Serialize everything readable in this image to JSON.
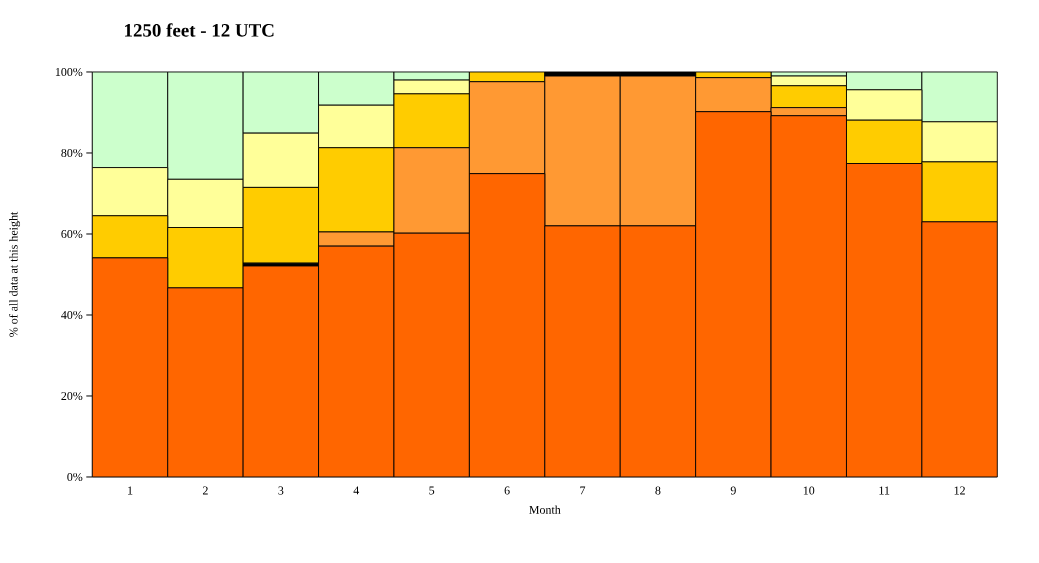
{
  "chart_data": {
    "type": "bar",
    "title": "1250 feet - 12 UTC",
    "xlabel": "Month",
    "ylabel": "% of all data at this height",
    "categories": [
      "1",
      "2",
      "3",
      "4",
      "5",
      "6",
      "7",
      "8",
      "9",
      "10",
      "11",
      "12"
    ],
    "stacked": true,
    "ylim": [
      0,
      100
    ],
    "yticks": [
      {
        "value": 0,
        "label": "0%"
      },
      {
        "value": 20,
        "label": "20%"
      },
      {
        "value": 40,
        "label": "40%"
      },
      {
        "value": 60,
        "label": "60%"
      },
      {
        "value": 80,
        "label": "80%"
      },
      {
        "value": 100,
        "label": "100%"
      }
    ],
    "series": [
      {
        "color": "#ff6600",
        "values": [
          54.1,
          46.7,
          52.1,
          57.0,
          60.2,
          74.9,
          62.0,
          62.0,
          90.2,
          89.2,
          77.4,
          63.0
        ]
      },
      {
        "color": "#ff9933",
        "values": [
          0,
          0,
          0,
          3.5,
          21.1,
          22.7,
          37.0,
          37.0,
          8.4,
          2.0,
          0,
          0
        ]
      },
      {
        "color": "#000000",
        "values": [
          0,
          0,
          0.7,
          0,
          0,
          0,
          1.0,
          1.0,
          0,
          0,
          0,
          0
        ]
      },
      {
        "color": "#ffcc00",
        "values": [
          10.4,
          14.9,
          18.7,
          20.8,
          13.3,
          2.4,
          0,
          0,
          1.4,
          5.4,
          10.7,
          14.8
        ]
      },
      {
        "color": "#ffff99",
        "values": [
          11.9,
          11.9,
          13.4,
          10.5,
          3.4,
          0,
          0,
          0,
          0,
          2.4,
          7.5,
          9.9
        ]
      },
      {
        "color": "#ccffcc",
        "values": [
          23.6,
          26.5,
          15.1,
          8.2,
          2.0,
          0,
          0,
          0,
          0,
          1.0,
          4.4,
          12.3
        ]
      }
    ]
  }
}
